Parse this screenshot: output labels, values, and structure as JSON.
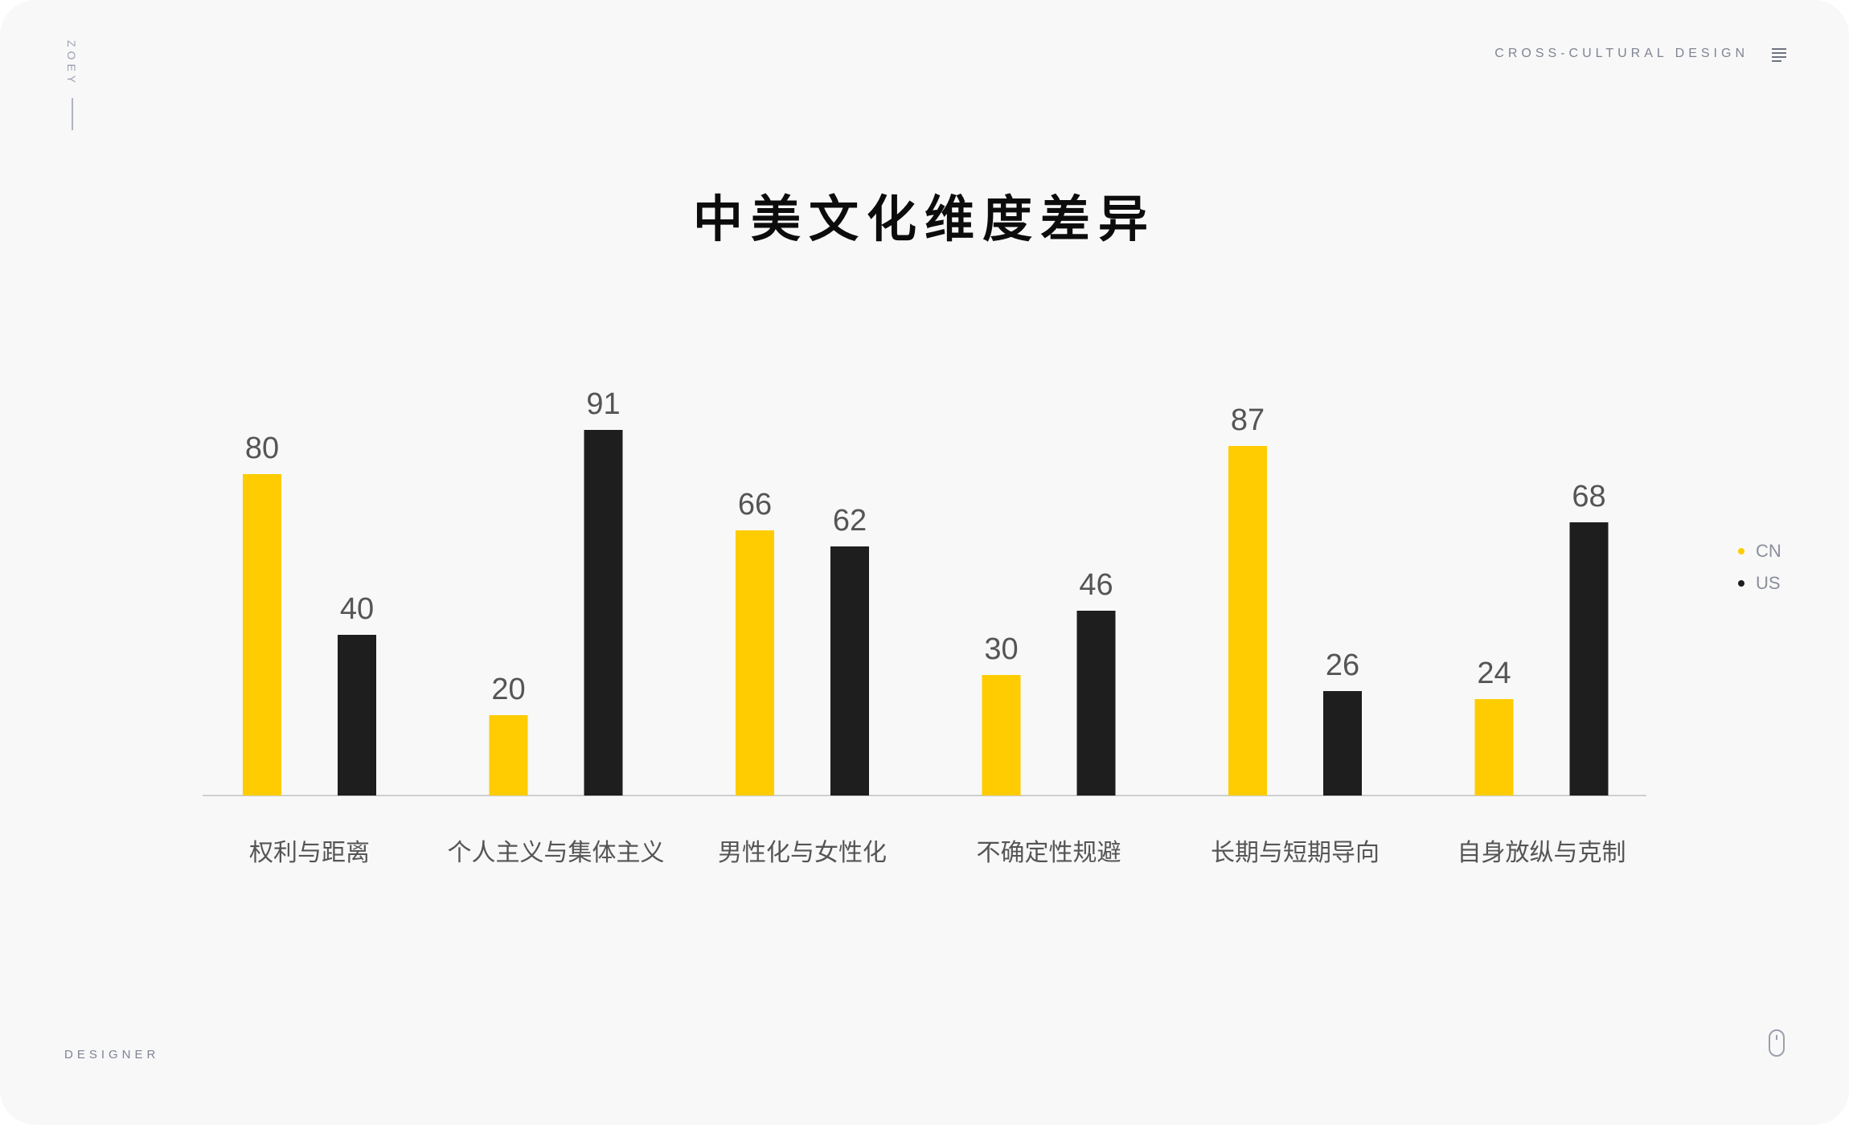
{
  "header": {
    "brand": "ZOEY",
    "nav_label": "CROSS-CULTURAL DESIGN",
    "menu_icon": "menu-icon"
  },
  "footer": {
    "label": "DESIGNER",
    "scroll_icon": "mouse-icon"
  },
  "colors": {
    "background": "#f8f8f8",
    "cn": "#fecc00",
    "us": "#1e1e1e",
    "axis": "#cfcfcf",
    "label": "#555555"
  },
  "chart_data": {
    "type": "bar",
    "title": "中美文化维度差异",
    "categories": [
      "权利与距离",
      "个人主义与集体主义",
      "男性化与女性化",
      "不确定性规避",
      "长期与短期导向",
      "自身放纵与克制"
    ],
    "series": [
      {
        "name": "CN",
        "color": "#fecc00",
        "values": [
          80,
          20,
          66,
          30,
          87,
          24
        ]
      },
      {
        "name": "US",
        "color": "#1e1e1e",
        "values": [
          40,
          91,
          62,
          46,
          26,
          68
        ]
      }
    ],
    "ylim": [
      0,
      100
    ],
    "grid": false,
    "legend_position": "right",
    "data_labels": true
  }
}
